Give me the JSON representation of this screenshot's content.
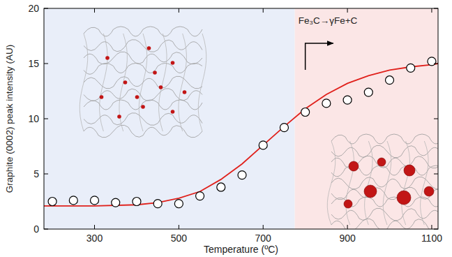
{
  "chart_data": {
    "type": "scatter",
    "x_label": "Temperature (ºC)",
    "y_label": "Graphite (0002) peak intensity (AU)",
    "xlim": [
      180,
      1115
    ],
    "xticks": [
      300,
      500,
      700,
      900,
      1100
    ],
    "ylim": [
      0,
      20
    ],
    "yticks": [
      0,
      5,
      10,
      15,
      20
    ],
    "grid": false,
    "regions": [
      {
        "xlim": [
          180,
          775
        ],
        "color": "#e9eef9"
      },
      {
        "xlim": [
          775,
          1115
        ],
        "color": "#fbe6e6"
      }
    ],
    "annotation": {
      "text": "Fe₃C→γFe+C",
      "x": 800
    },
    "series": [
      {
        "type": "scatter",
        "marker": "open-circle",
        "color": "#000000",
        "x": [
          200,
          250,
          300,
          350,
          400,
          450,
          500,
          550,
          600,
          650,
          700,
          750,
          800,
          850,
          900,
          950,
          1000,
          1050,
          1100
        ],
        "values": [
          2.5,
          2.6,
          2.6,
          2.4,
          2.5,
          2.3,
          2.3,
          3.0,
          3.8,
          4.9,
          7.6,
          9.2,
          10.6,
          11.4,
          11.7,
          12.4,
          13.5,
          14.6,
          15.2
        ]
      },
      {
        "type": "line",
        "line_style": "solid",
        "color": "#e0201b",
        "x": [
          180,
          300,
          400,
          450,
          500,
          550,
          600,
          650,
          700,
          750,
          800,
          850,
          900,
          950,
          1000,
          1050,
          1100,
          1115
        ],
        "values": [
          2.1,
          2.1,
          2.2,
          2.4,
          2.8,
          3.4,
          4.5,
          5.9,
          7.6,
          9.3,
          10.9,
          12.2,
          13.2,
          13.9,
          14.4,
          14.7,
          14.9,
          15.0
        ]
      }
    ]
  }
}
